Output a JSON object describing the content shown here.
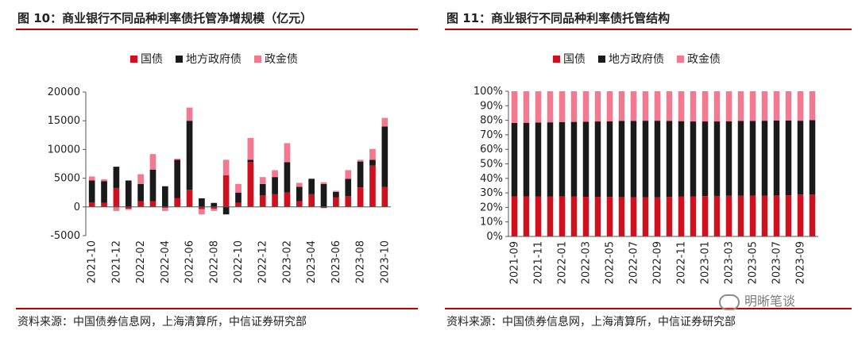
{
  "figures": [
    {
      "title": "图 10：商业银行不同品种利率债托管净增规模（亿元）",
      "source": "资料来源：中国债券信息网，上海清算所，中信证券研究部"
    },
    {
      "title": "图 11：商业银行不同品种利率债托管结构",
      "source": "资料来源：中国债券信息网，上海清算所，中信证券研究部"
    }
  ],
  "watermark": "明晰笔谈",
  "colors": {
    "guozhai": "#d0101e",
    "difang": "#1a1a1a",
    "zhengjin": "#f2798f",
    "rule": "#c00000"
  },
  "chart_data": [
    {
      "type": "bar",
      "stacked": true,
      "legend_position": "top",
      "grid": false,
      "ylim": [
        -5000,
        20000
      ],
      "yticks": [
        "-5000",
        "0",
        "5000",
        "10000",
        "15000",
        "20000"
      ],
      "tick_labels": [
        "2021-10",
        "2021-12",
        "2022-02",
        "2022-04",
        "2022-06",
        "2022-08",
        "2022-10",
        "2022-12",
        "2023-02",
        "2023-04",
        "2023-06",
        "2023-08",
        "2023-10"
      ],
      "categories": [
        "2021-10",
        "2021-11",
        "2021-12",
        "2022-01",
        "2022-02",
        "2022-03",
        "2022-04",
        "2022-05",
        "2022-06",
        "2022-07",
        "2022-08",
        "2022-09",
        "2022-10",
        "2022-11",
        "2022-12",
        "2023-01",
        "2023-02",
        "2023-03",
        "2023-04",
        "2023-05",
        "2023-06",
        "2023-07",
        "2023-08",
        "2023-09",
        "2023-10"
      ],
      "series": [
        {
          "name": "国债",
          "values": [
            800,
            700,
            3300,
            -300,
            1000,
            1000,
            -200,
            1500,
            3000,
            -400,
            -300,
            5500,
            700,
            7800,
            2000,
            2200,
            2500,
            1000,
            2200,
            -200,
            1700,
            1900,
            3400,
            7200,
            3500
          ]
        },
        {
          "name": "地方政府债",
          "values": [
            3800,
            3800,
            3700,
            4600,
            3000,
            5500,
            3600,
            6700,
            12000,
            1500,
            700,
            -1300,
            1800,
            400,
            2000,
            3000,
            5300,
            2500,
            2700,
            4000,
            900,
            3000,
            4500,
            1000,
            10500
          ]
        },
        {
          "name": "政金债",
          "values": [
            700,
            300,
            -700,
            -200,
            1700,
            2700,
            -500,
            200,
            2300,
            -900,
            -400,
            2700,
            1500,
            3800,
            1200,
            1200,
            3300,
            700,
            0,
            300,
            200,
            1500,
            300,
            1900,
            1500
          ]
        }
      ]
    },
    {
      "type": "bar",
      "stacked": true,
      "legend_position": "top",
      "grid": false,
      "ylim": [
        0,
        100
      ],
      "yticks": [
        "0%",
        "10%",
        "20%",
        "30%",
        "40%",
        "50%",
        "60%",
        "70%",
        "80%",
        "90%",
        "100%"
      ],
      "tick_labels": [
        "2021-09",
        "2021-11",
        "2022-01",
        "2022-03",
        "2022-05",
        "2022-07",
        "2022-09",
        "2022-11",
        "2023-01",
        "2023-03",
        "2023-05",
        "2023-07",
        "2023-09"
      ],
      "categories": [
        "2021-09",
        "2021-10",
        "2021-11",
        "2021-12",
        "2022-01",
        "2022-02",
        "2022-03",
        "2022-04",
        "2022-05",
        "2022-06",
        "2022-07",
        "2022-08",
        "2022-09",
        "2022-10",
        "2022-11",
        "2022-12",
        "2023-01",
        "2023-02",
        "2023-03",
        "2023-04",
        "2023-05",
        "2023-06",
        "2023-07",
        "2023-08",
        "2023-09",
        "2023-10"
      ],
      "series": [
        {
          "name": "国债",
          "values": [
            27.5,
            27.5,
            27.6,
            27.6,
            27.5,
            27.4,
            27.3,
            27.3,
            27.2,
            27.1,
            27.0,
            27.0,
            26.9,
            27.2,
            27.4,
            27.6,
            27.8,
            27.9,
            28.0,
            28.0,
            28.1,
            28.1,
            28.2,
            28.3,
            28.8,
            28.8
          ]
        },
        {
          "name": "地方政府债",
          "values": [
            50.7,
            50.8,
            50.9,
            51.0,
            51.3,
            51.5,
            51.7,
            51.9,
            52.1,
            52.5,
            52.6,
            52.7,
            52.8,
            52.4,
            52.0,
            51.6,
            51.4,
            51.3,
            51.3,
            51.5,
            51.5,
            51.6,
            51.6,
            51.6,
            50.9,
            51.3
          ]
        },
        {
          "name": "政金债",
          "values": [
            21.8,
            21.7,
            21.5,
            21.4,
            21.2,
            21.1,
            21.0,
            20.8,
            20.7,
            20.4,
            20.4,
            20.3,
            20.3,
            20.4,
            20.6,
            20.8,
            20.8,
            20.8,
            20.7,
            20.5,
            20.4,
            20.3,
            20.2,
            20.1,
            20.3,
            19.9
          ]
        }
      ]
    }
  ]
}
